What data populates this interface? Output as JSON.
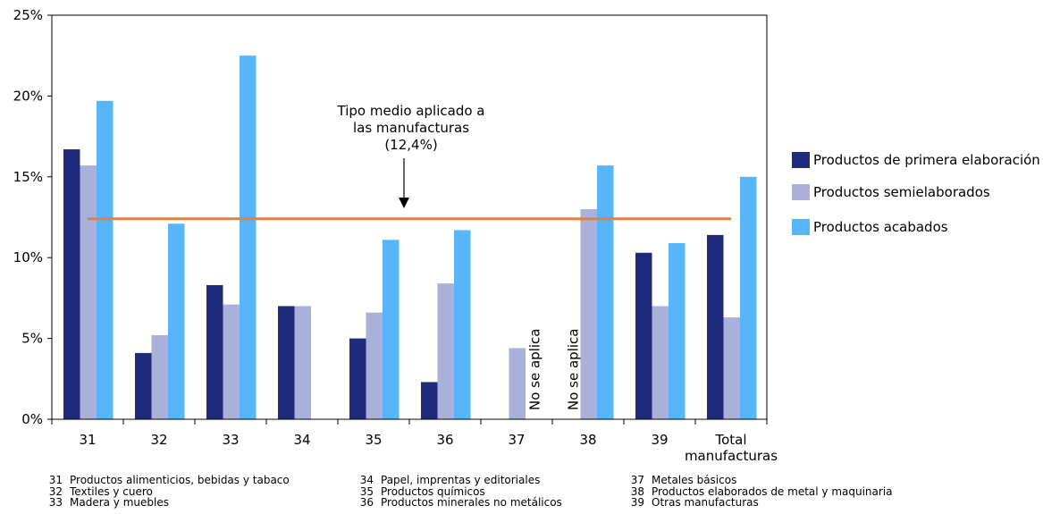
{
  "chart_data": {
    "type": "bar",
    "categories": [
      "31",
      "32",
      "33",
      "34",
      "35",
      "36",
      "37",
      "38",
      "39",
      "Total manufacturas"
    ],
    "series": [
      {
        "name": "Productos de primera elaboración",
        "color": "#1f2b7a",
        "values": [
          16.7,
          4.1,
          8.3,
          7.0,
          5.0,
          2.3,
          null,
          null,
          10.3,
          11.4
        ]
      },
      {
        "name": "Productos semielaborados",
        "color": "#a9b0da",
        "values": [
          15.7,
          5.2,
          7.1,
          7.0,
          6.6,
          8.4,
          4.4,
          13.0,
          7.0,
          6.3
        ]
      },
      {
        "name": "Productos acabados",
        "color": "#57b5fb",
        "values": [
          19.7,
          12.1,
          22.5,
          null,
          11.1,
          11.7,
          null,
          15.7,
          10.9,
          15.0
        ]
      }
    ],
    "ylim": [
      0,
      25
    ],
    "yticks": [
      "0%",
      "5%",
      "10%",
      "15%",
      "20%",
      "25%"
    ],
    "reference_line": {
      "value": 12.4,
      "color": "#ed7d31"
    },
    "annotation": {
      "lines": [
        "Tipo medio aplicado a",
        "las manufacturas",
        "(12,4%)"
      ]
    },
    "not_applicable_label": "No se aplica",
    "not_applicable": [
      {
        "category": "37",
        "series": 2
      },
      {
        "category": "38",
        "series": 0
      }
    ],
    "legend_position": "right",
    "grid": false
  },
  "footnote_codes": [
    [
      {
        "code": "31",
        "label": "Productos alimenticios, bebidas y tabaco"
      },
      {
        "code": "32",
        "label": "Textiles y cuero"
      },
      {
        "code": "33",
        "label": "Madera y muebles"
      }
    ],
    [
      {
        "code": "34",
        "label": "Papel, imprentas y editoriales"
      },
      {
        "code": "35",
        "label": "Productos químicos"
      },
      {
        "code": "36",
        "label": "Productos minerales no metálicos"
      }
    ],
    [
      {
        "code": "37",
        "label": "Metales básicos"
      },
      {
        "code": "38",
        "label": "Productos elaborados de metal y maquinaria"
      },
      {
        "code": "39",
        "label": "Otras manufacturas"
      }
    ]
  ]
}
